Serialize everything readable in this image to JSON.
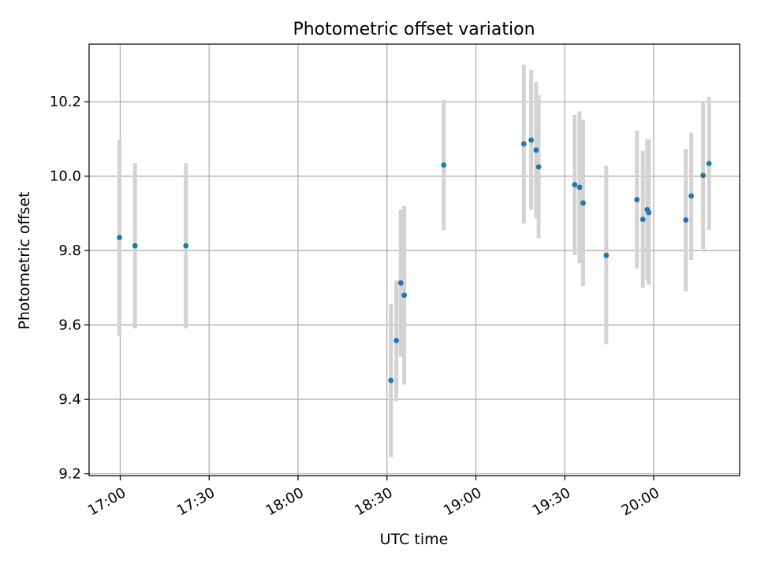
{
  "chart_data": {
    "type": "scatter",
    "title": "Photometric offset variation",
    "xlabel": "UTC time",
    "ylabel": "Photometric offset",
    "xlim": [
      "16:49:30",
      "20:29:00"
    ],
    "ylim": [
      9.195,
      10.355
    ],
    "x_ticks": [
      "17:00",
      "17:30",
      "18:00",
      "18:30",
      "19:00",
      "19:30",
      "20:00"
    ],
    "y_ticks": [
      "9.2",
      "9.4",
      "9.6",
      "9.8",
      "10.0",
      "10.2"
    ],
    "grid": true,
    "error_bars": true,
    "colors": {
      "points": "#1f77b4",
      "error_bars": "#d3d3d3",
      "grid": "#b0b0b0"
    },
    "points": [
      {
        "time": "16:59:45",
        "y": 9.835,
        "ylo": 9.57,
        "yhi": 10.098
      },
      {
        "time": "17:05:00",
        "y": 9.813,
        "ylo": 9.591,
        "yhi": 10.035
      },
      {
        "time": "17:22:10",
        "y": 9.813,
        "ylo": 9.591,
        "yhi": 10.035
      },
      {
        "time": "18:31:20",
        "y": 9.451,
        "ylo": 9.245,
        "yhi": 9.656
      },
      {
        "time": "18:33:10",
        "y": 9.558,
        "ylo": 9.395,
        "yhi": 9.72
      },
      {
        "time": "18:34:40",
        "y": 9.713,
        "ylo": 9.515,
        "yhi": 9.91
      },
      {
        "time": "18:35:50",
        "y": 9.68,
        "ylo": 9.44,
        "yhi": 9.92
      },
      {
        "time": "18:49:10",
        "y": 10.03,
        "ylo": 9.855,
        "yhi": 10.205
      },
      {
        "time": "19:16:10",
        "y": 10.087,
        "ylo": 9.873,
        "yhi": 10.3
      },
      {
        "time": "19:18:40",
        "y": 10.097,
        "ylo": 9.91,
        "yhi": 10.285
      },
      {
        "time": "19:20:20",
        "y": 10.07,
        "ylo": 9.887,
        "yhi": 10.253
      },
      {
        "time": "19:21:10",
        "y": 10.025,
        "ylo": 9.833,
        "yhi": 10.218
      },
      {
        "time": "19:33:20",
        "y": 9.977,
        "ylo": 9.788,
        "yhi": 10.165
      },
      {
        "time": "19:35:00",
        "y": 9.97,
        "ylo": 9.766,
        "yhi": 10.174
      },
      {
        "time": "19:36:10",
        "y": 9.928,
        "ylo": 9.705,
        "yhi": 10.152
      },
      {
        "time": "19:44:00",
        "y": 9.787,
        "ylo": 9.548,
        "yhi": 10.028
      },
      {
        "time": "19:54:20",
        "y": 9.937,
        "ylo": 9.752,
        "yhi": 10.122
      },
      {
        "time": "19:56:20",
        "y": 9.884,
        "ylo": 9.7,
        "yhi": 10.068
      },
      {
        "time": "19:57:50",
        "y": 9.91,
        "ylo": 9.72,
        "yhi": 10.1
      },
      {
        "time": "19:58:20",
        "y": 9.902,
        "ylo": 9.708,
        "yhi": 10.098
      },
      {
        "time": "20:10:50",
        "y": 9.882,
        "ylo": 9.69,
        "yhi": 10.073
      },
      {
        "time": "20:12:40",
        "y": 9.947,
        "ylo": 9.775,
        "yhi": 10.117
      },
      {
        "time": "20:16:40",
        "y": 10.002,
        "ylo": 9.804,
        "yhi": 10.2
      },
      {
        "time": "20:18:40",
        "y": 10.034,
        "ylo": 9.855,
        "yhi": 10.214
      }
    ]
  }
}
